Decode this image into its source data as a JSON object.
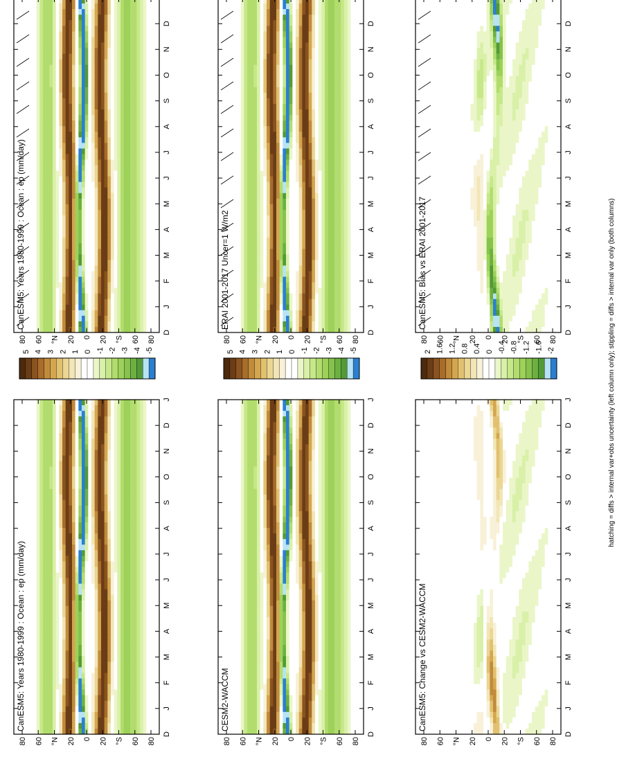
{
  "figure": {
    "footer": "hatching = diffs > internal var+obs uncertainty (left column only); stippling = diffs > internal var only (both columns)"
  },
  "scales": {
    "main": {
      "labels": [
        "5",
        "4",
        "3",
        "2",
        "1",
        "0",
        "-1",
        "-2",
        "-3",
        "-4",
        "-5"
      ],
      "colors": [
        "#4d2a0e",
        "#6b3d16",
        "#8a531f",
        "#a86c2b",
        "#c18b3c",
        "#d4a64f",
        "#e1c170",
        "#ebd693",
        "#f2e6b6",
        "#f8f1d8",
        "#ffffff",
        "#ffffff",
        "#eaf6c8",
        "#d9f0a8",
        "#c6e88a",
        "#b2dd6e",
        "#9dd15a",
        "#86c24d",
        "#6db041",
        "#529a36",
        "#b7e3f5",
        "#2b7fd1"
      ]
    },
    "diff": {
      "labels": [
        "2",
        "1.6",
        "1.2",
        "0.8",
        "0.4",
        "0",
        "-0.4",
        "-0.8",
        "-1.2",
        "-1.6",
        "-2"
      ],
      "colors": [
        "#4d2a0e",
        "#6b3d16",
        "#8a531f",
        "#a86c2b",
        "#c18b3c",
        "#d4a64f",
        "#e1c170",
        "#ebd693",
        "#f2e6b6",
        "#f8f1d8",
        "#ffffff",
        "#ffffff",
        "#eaf6c8",
        "#d9f0a8",
        "#c6e88a",
        "#b2dd6e",
        "#9dd15a",
        "#86c24d",
        "#6db041",
        "#529a36",
        "#b7e3f5",
        "#2b7fd1"
      ]
    }
  },
  "axes": {
    "months": [
      "D",
      "J",
      "F",
      "M",
      "A",
      "M",
      "J",
      "J",
      "A",
      "S",
      "O",
      "N",
      "D",
      "J"
    ],
    "lats": [
      "80",
      "60",
      "°N",
      "20",
      "0",
      "20",
      "°S",
      "60",
      "80"
    ]
  },
  "chart_data": [
    {
      "type": "heatmap",
      "title": "CanESM5: Years 1980-1999 : Ocean : ep (mm/day)",
      "variable": "ep",
      "units": "mm/day",
      "x": "month",
      "y": "latitude",
      "scale": "main",
      "colorbar_range": [
        -5,
        5
      ],
      "hatching": true
    },
    {
      "type": "heatmap",
      "title": "CanESM5: Years 1980-1999 : Ocean : ep (mm/day)",
      "variable": "ep",
      "units": "mm/day",
      "x": "month",
      "y": "latitude",
      "scale": "main",
      "colorbar_range": [
        -5,
        5
      ],
      "hatching": false
    },
    {
      "type": "heatmap",
      "title": "ERAI 2001-2017 Uncer=1 W/m2",
      "x": "month",
      "y": "latitude",
      "scale": "main",
      "colorbar_range": [
        -5,
        5
      ],
      "hatching": true
    },
    {
      "type": "heatmap",
      "title": "CESM2-WACCM",
      "x": "month",
      "y": "latitude",
      "scale": "main",
      "colorbar_range": [
        -5,
        5
      ],
      "hatching": false
    },
    {
      "type": "heatmap",
      "title": "CanESM5: Bias vs ERAI 2001-2017",
      "x": "month",
      "y": "latitude",
      "scale": "diff",
      "colorbar_range": [
        -2,
        2
      ],
      "hatching": true
    },
    {
      "type": "heatmap",
      "title": "CanESM5: Change vs CESM2-WACCM",
      "x": "month",
      "y": "latitude",
      "scale": "diff",
      "colorbar_range": [
        -2,
        2
      ],
      "hatching": false
    }
  ]
}
